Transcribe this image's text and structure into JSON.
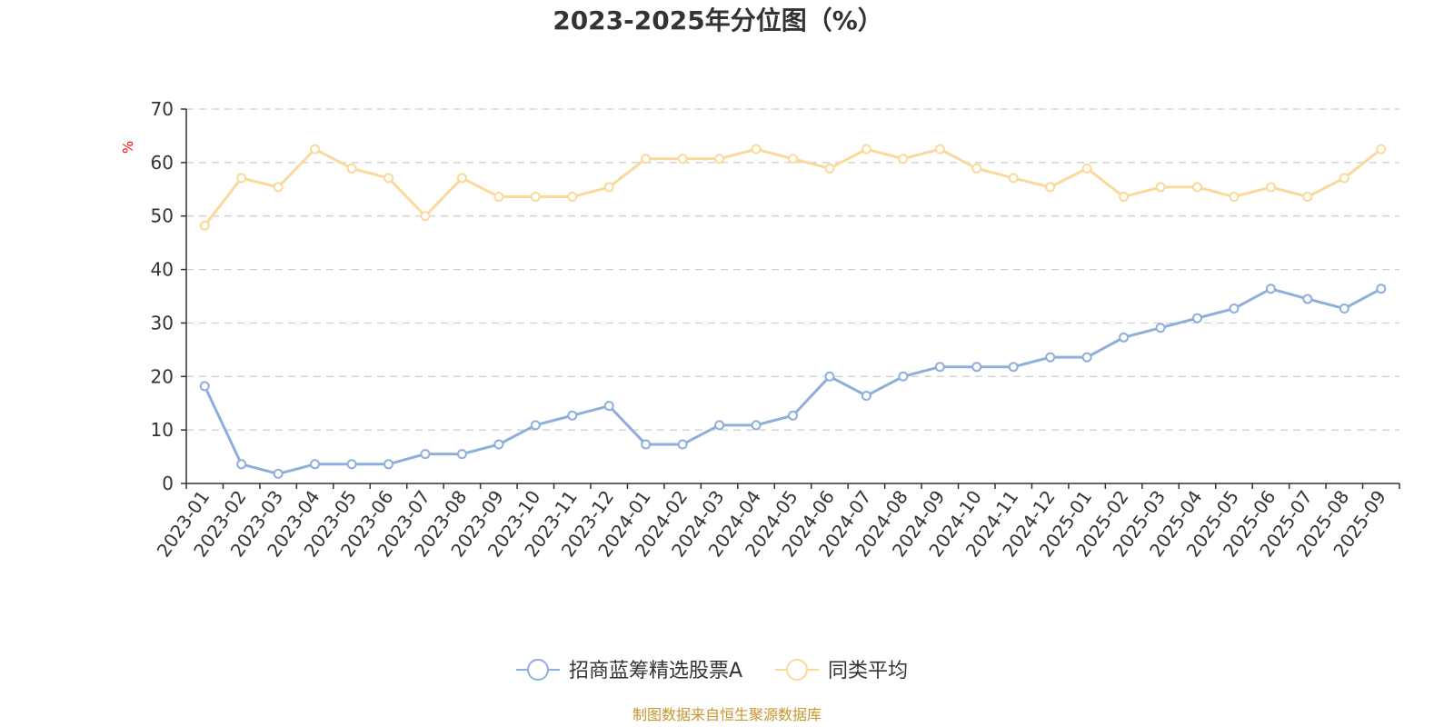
{
  "chart_data": {
    "type": "line",
    "title": "2023-2025年分位图（%）",
    "ylabel": "%",
    "ylim": [
      0,
      70
    ],
    "yticks": [
      0,
      10,
      20,
      30,
      40,
      50,
      60,
      70
    ],
    "grid": true,
    "legend_position": "bottom",
    "categories": [
      "2023-01",
      "2023-02",
      "2023-03",
      "2023-04",
      "2023-05",
      "2023-06",
      "2023-07",
      "2023-08",
      "2023-09",
      "2023-10",
      "2023-11",
      "2023-12",
      "2024-01",
      "2024-02",
      "2024-03",
      "2024-04",
      "2024-05",
      "2024-06",
      "2024-07",
      "2024-08",
      "2024-09",
      "2024-10",
      "2024-11",
      "2024-12",
      "2025-01",
      "2025-02",
      "2025-03",
      "2025-04",
      "2025-05",
      "2025-06",
      "2025-07",
      "2025-08",
      "2025-09"
    ],
    "series": [
      {
        "name": "招商蓝筹精选股票A",
        "color": "#8eaedb",
        "values": [
          18.2,
          3.6,
          1.8,
          3.6,
          3.6,
          3.6,
          5.5,
          5.5,
          7.3,
          10.9,
          12.7,
          14.5,
          7.3,
          7.3,
          10.9,
          10.9,
          12.7,
          20.0,
          16.4,
          20.0,
          21.8,
          21.8,
          21.8,
          23.6,
          23.6,
          27.3,
          29.1,
          30.9,
          32.7,
          36.4,
          34.5,
          32.7,
          36.4
        ]
      },
      {
        "name": "同类平均",
        "color": "#fad99a",
        "values": [
          48.2,
          57.1,
          55.4,
          62.5,
          58.9,
          57.1,
          50.0,
          57.1,
          53.6,
          53.6,
          53.6,
          55.4,
          60.7,
          60.7,
          60.7,
          62.5,
          60.7,
          58.9,
          62.5,
          60.7,
          62.5,
          58.9,
          57.1,
          55.4,
          58.9,
          53.6,
          55.4,
          55.4,
          53.6,
          55.4,
          53.6,
          57.1,
          62.5
        ]
      }
    ],
    "source_note": "制图数据来自恒生聚源数据库"
  }
}
